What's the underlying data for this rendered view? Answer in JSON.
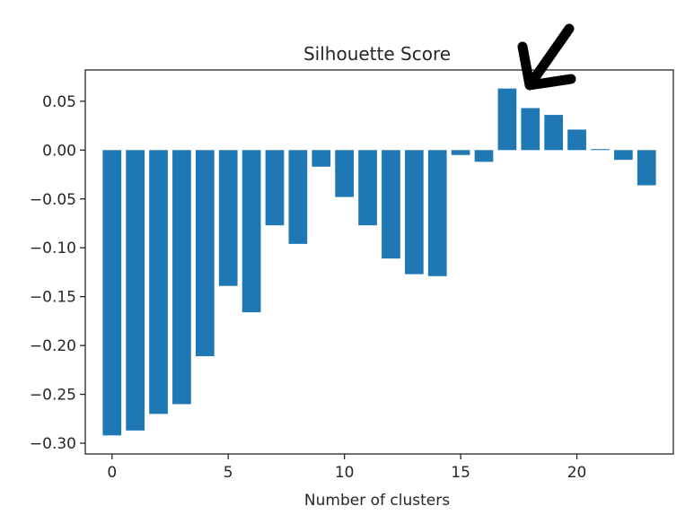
{
  "chart_data": {
    "type": "bar",
    "title": "Silhouette Score",
    "xlabel": "Number of clusters",
    "ylabel": "",
    "x": [
      0,
      1,
      2,
      3,
      4,
      5,
      6,
      7,
      8,
      9,
      10,
      11,
      12,
      13,
      14,
      15,
      16,
      17,
      18,
      19,
      20,
      21,
      22,
      23
    ],
    "values": [
      -0.292,
      -0.287,
      -0.27,
      -0.26,
      -0.211,
      -0.139,
      -0.166,
      -0.077,
      -0.096,
      -0.017,
      -0.048,
      -0.077,
      -0.111,
      -0.127,
      -0.129,
      -0.005,
      -0.012,
      0.063,
      0.043,
      0.036,
      0.021,
      0.001,
      -0.01,
      -0.036
    ],
    "xticks": [
      0,
      5,
      10,
      15,
      20
    ],
    "xtick_labels": [
      "0",
      "5",
      "10",
      "15",
      "20"
    ],
    "yticks": [
      -0.3,
      -0.25,
      -0.2,
      -0.15,
      -0.1,
      -0.05,
      0.0,
      0.05
    ],
    "ytick_labels": [
      "−0.30",
      "−0.25",
      "−0.20",
      "−0.15",
      "−0.10",
      "−0.05",
      "0.00",
      "0.05"
    ],
    "xlim": [
      -1.15,
      24.15
    ],
    "ylim": [
      -0.311,
      0.082
    ],
    "grid": false,
    "bar_color": "#1f77b4",
    "annotation": {
      "type": "arrow",
      "points_to_x": 18,
      "color": "#000000"
    }
  }
}
